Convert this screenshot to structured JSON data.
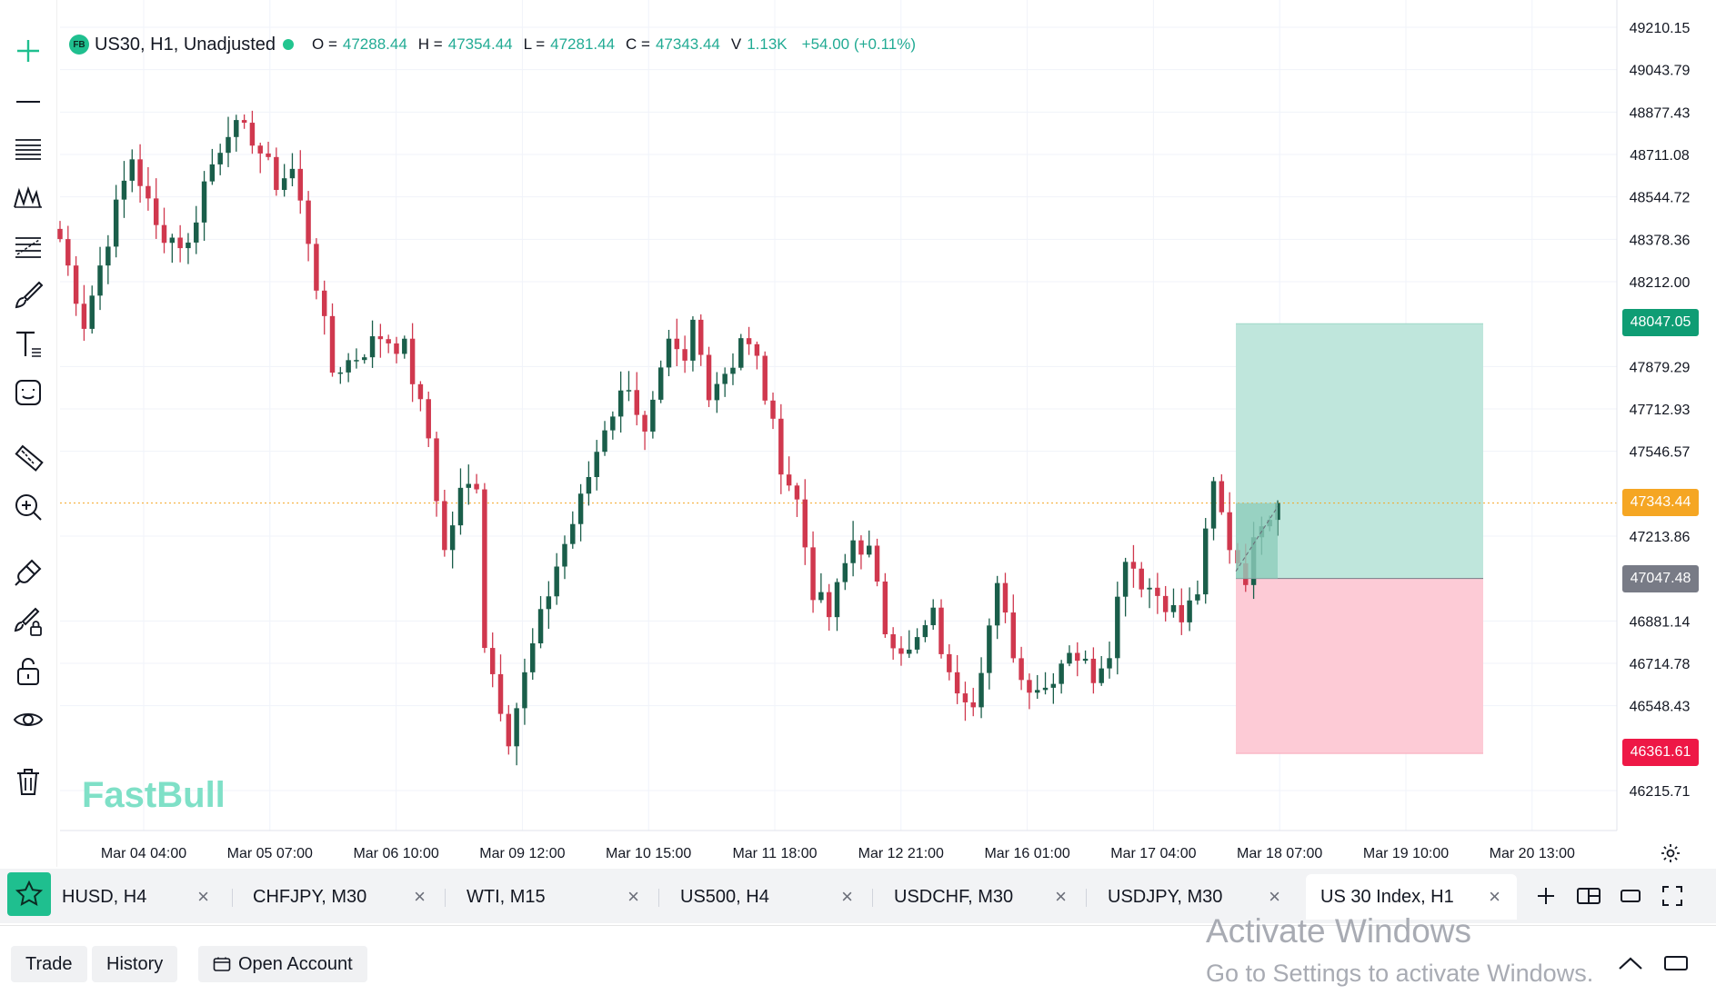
{
  "header": {
    "badge": "FB",
    "symbol": "US30, H1, Unadjusted",
    "ohlc": [
      {
        "label": "O =",
        "value": "47288.44"
      },
      {
        "label": "H =",
        "value": "47354.44"
      },
      {
        "label": "L =",
        "value": "47281.44"
      },
      {
        "label": "C =",
        "value": "47343.44"
      },
      {
        "label": "V",
        "value": "1.13K"
      }
    ],
    "change": "+54.00 (+0.11%)"
  },
  "watermark": "FastBull",
  "price_axis": [
    "49210.15",
    "49043.79",
    "48877.43",
    "48711.08",
    "48544.72",
    "48378.36",
    "48212.00",
    "47879.29",
    "47712.93",
    "47546.57",
    "47213.86",
    "46881.14",
    "46714.78",
    "46548.43",
    "46215.71"
  ],
  "time_axis": [
    "Mar 04 04:00",
    "Mar 05 07:00",
    "Mar 06 10:00",
    "Mar 09 12:00",
    "Mar 10 15:00",
    "Mar 11 18:00",
    "Mar 12 21:00",
    "Mar 16 01:00",
    "Mar 17 04:00",
    "Mar 18 07:00",
    "Mar 19 10:00",
    "Mar 20 13:00"
  ],
  "price_tags": {
    "take_profit": "48047.05",
    "current": "47343.44",
    "entry": "47047.48",
    "stop_loss": "46361.61"
  },
  "colors": {
    "up": "#1a5e4a",
    "down": "#d0384e",
    "take_profit_zone": "#bfe6dc",
    "stop_loss_zone": "#fdcbd6",
    "accent": "#1fbf8f",
    "current_tag": "#f5a623",
    "entry_tag": "#787b86",
    "tp_tag": "#0f9d74",
    "sl_tag": "#ee1846"
  },
  "left_toolbar": [
    "crosshair-icon",
    "line-icon",
    "channel-icon",
    "pattern-icon",
    "fib-icon",
    "brush-icon",
    "text-icon",
    "emoji-icon",
    "ruler-icon",
    "zoom-in-icon",
    "magnet-icon",
    "lock-drawing-icon",
    "lock-icon",
    "eye-icon",
    "trash-icon"
  ],
  "tabs": [
    {
      "label": "HUSD, H4",
      "active": false
    },
    {
      "label": "CHFJPY, M30",
      "active": false
    },
    {
      "label": "WTI, M15",
      "active": false
    },
    {
      "label": "US500, H4",
      "active": false
    },
    {
      "label": "USDCHF, M30",
      "active": false
    },
    {
      "label": "USDJPY, M30",
      "active": false
    },
    {
      "label": "US 30 Index, H1",
      "active": true
    }
  ],
  "tab_close": "×",
  "bottom": {
    "trade": "Trade",
    "history": "History",
    "open_account": "Open Account"
  },
  "activation": {
    "line1": "Activate Windows",
    "line2": "Go to Settings to activate Windows."
  },
  "chart_data": {
    "type": "candlestick",
    "ylim": [
      46120,
      49290
    ],
    "anchors": [
      [
        0,
        48380
      ],
      [
        3,
        48050
      ],
      [
        7,
        48500
      ],
      [
        9,
        48700
      ],
      [
        12,
        48420
      ],
      [
        16,
        48350
      ],
      [
        18,
        48600
      ],
      [
        21,
        48820
      ],
      [
        24,
        48780
      ],
      [
        27,
        48600
      ],
      [
        29,
        48650
      ],
      [
        31,
        48380
      ],
      [
        34,
        47860
      ],
      [
        37,
        47920
      ],
      [
        40,
        48000
      ],
      [
        43,
        47950
      ],
      [
        46,
        47600
      ],
      [
        48,
        47150
      ],
      [
        50,
        47380
      ],
      [
        52,
        47430
      ],
      [
        53,
        46800
      ],
      [
        56,
        46430
      ],
      [
        59,
        46780
      ],
      [
        62,
        47100
      ],
      [
        65,
        47350
      ],
      [
        68,
        47650
      ],
      [
        71,
        47820
      ],
      [
        73,
        47600
      ],
      [
        76,
        47950
      ],
      [
        78,
        47880
      ],
      [
        79,
        48050
      ],
      [
        81,
        47790
      ],
      [
        84,
        47900
      ],
      [
        85,
        48000
      ],
      [
        87,
        47900
      ],
      [
        90,
        47500
      ],
      [
        92,
        47350
      ],
      [
        94,
        47000
      ],
      [
        96,
        46900
      ],
      [
        99,
        47200
      ],
      [
        101,
        47150
      ],
      [
        103,
        46850
      ],
      [
        106,
        46750
      ],
      [
        109,
        46900
      ],
      [
        111,
        46650
      ],
      [
        114,
        46580
      ],
      [
        117,
        47000
      ],
      [
        120,
        46650
      ],
      [
        123,
        46620
      ],
      [
        126,
        46780
      ],
      [
        129,
        46670
      ],
      [
        131,
        46780
      ],
      [
        133,
        47150
      ],
      [
        135,
        47040
      ],
      [
        138,
        46960
      ],
      [
        140,
        46880
      ],
      [
        142,
        47000
      ],
      [
        144,
        47410
      ],
      [
        146,
        47180
      ],
      [
        148,
        47060
      ],
      [
        150,
        47290
      ],
      [
        152,
        47343
      ]
    ]
  }
}
